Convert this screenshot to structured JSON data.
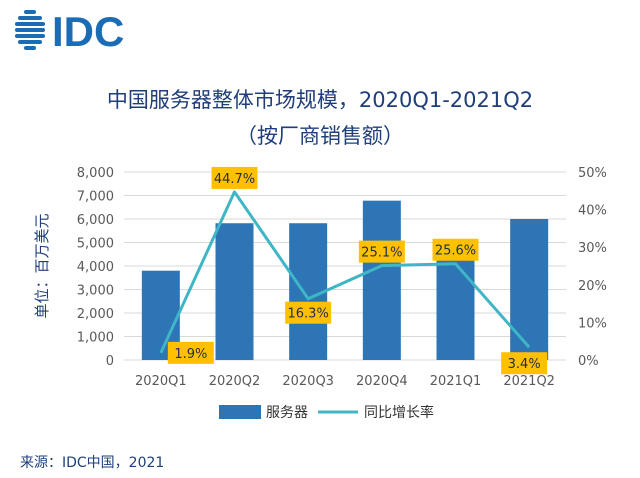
{
  "logo": {
    "text": "IDC"
  },
  "title": "中国服务器整体市场规模，2020Q1-2021Q2",
  "subtitle": "（按厂商销售额）",
  "source": "来源：IDC中国，2021",
  "colors": {
    "bar": "#2e75b6",
    "line": "#3fb6c6",
    "title": "#1f3e7a",
    "label_bg": "#ffc000",
    "grid": "#d9d9d9",
    "axis_text": "#595959",
    "logo": "#1a6db5"
  },
  "chart_data": {
    "type": "bar",
    "title": "中国服务器整体市场规模，2020Q1-2021Q2",
    "subtitle": "（按厂商销售额）",
    "categories": [
      "2020Q1",
      "2020Q2",
      "2020Q3",
      "2020Q4",
      "2021Q1",
      "2021Q2"
    ],
    "ylabel": "单位：百万美元",
    "ylim": [
      0,
      8000
    ],
    "y_ticks": [
      "0",
      "1,000",
      "2,000",
      "3,000",
      "4,000",
      "5,000",
      "6,000",
      "7,000",
      "8,000"
    ],
    "y2lim": [
      0,
      50
    ],
    "y2_ticks": [
      "0%",
      "10%",
      "20%",
      "30%",
      "40%",
      "50%"
    ],
    "grid": true,
    "legend_position": "bottom",
    "series": [
      {
        "name": "服务器",
        "type": "bar",
        "axis": "left",
        "values": [
          3800,
          5820,
          5820,
          6780,
          4780,
          6000
        ]
      },
      {
        "name": "同比增长率",
        "type": "line",
        "axis": "right",
        "values": [
          1.9,
          44.7,
          16.3,
          25.1,
          25.6,
          3.4
        ],
        "labels": [
          "1.9%",
          "44.7%",
          "16.3%",
          "25.1%",
          "25.6%",
          "3.4%"
        ]
      }
    ]
  }
}
